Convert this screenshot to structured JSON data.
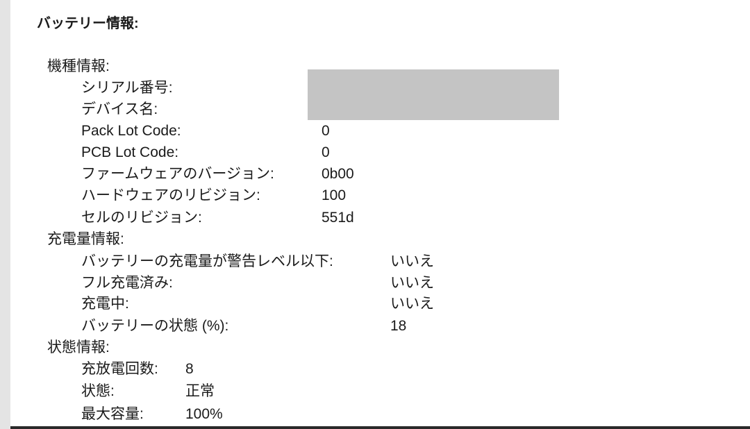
{
  "title": "バッテリー情報:",
  "model_info": {
    "heading": "機種情報:",
    "rows": [
      {
        "label": "シリアル番号:",
        "value": ""
      },
      {
        "label": "デバイス名:",
        "value": ""
      },
      {
        "label": "Pack Lot Code:",
        "value": "0"
      },
      {
        "label": "PCB Lot Code:",
        "value": "0"
      },
      {
        "label": "ファームウェアのバージョン:",
        "value": "0b00"
      },
      {
        "label": "ハードウェアのリビジョン:",
        "value": "100"
      },
      {
        "label": "セルのリビジョン:",
        "value": "551d"
      }
    ]
  },
  "charge_info": {
    "heading": "充電量情報:",
    "rows": [
      {
        "label": "バッテリーの充電量が警告レベル以下:",
        "value": "いいえ"
      },
      {
        "label": "フル充電済み:",
        "value": "いいえ"
      },
      {
        "label": "充電中:",
        "value": "いいえ"
      },
      {
        "label": "バッテリーの状態 (%):",
        "value": "18"
      }
    ]
  },
  "health_info": {
    "heading": "状態情報:",
    "rows": [
      {
        "label": "充放電回数:",
        "value": "8"
      },
      {
        "label": "状態:",
        "value": "正常"
      },
      {
        "label": "最大容量:",
        "value": "100%"
      }
    ]
  }
}
